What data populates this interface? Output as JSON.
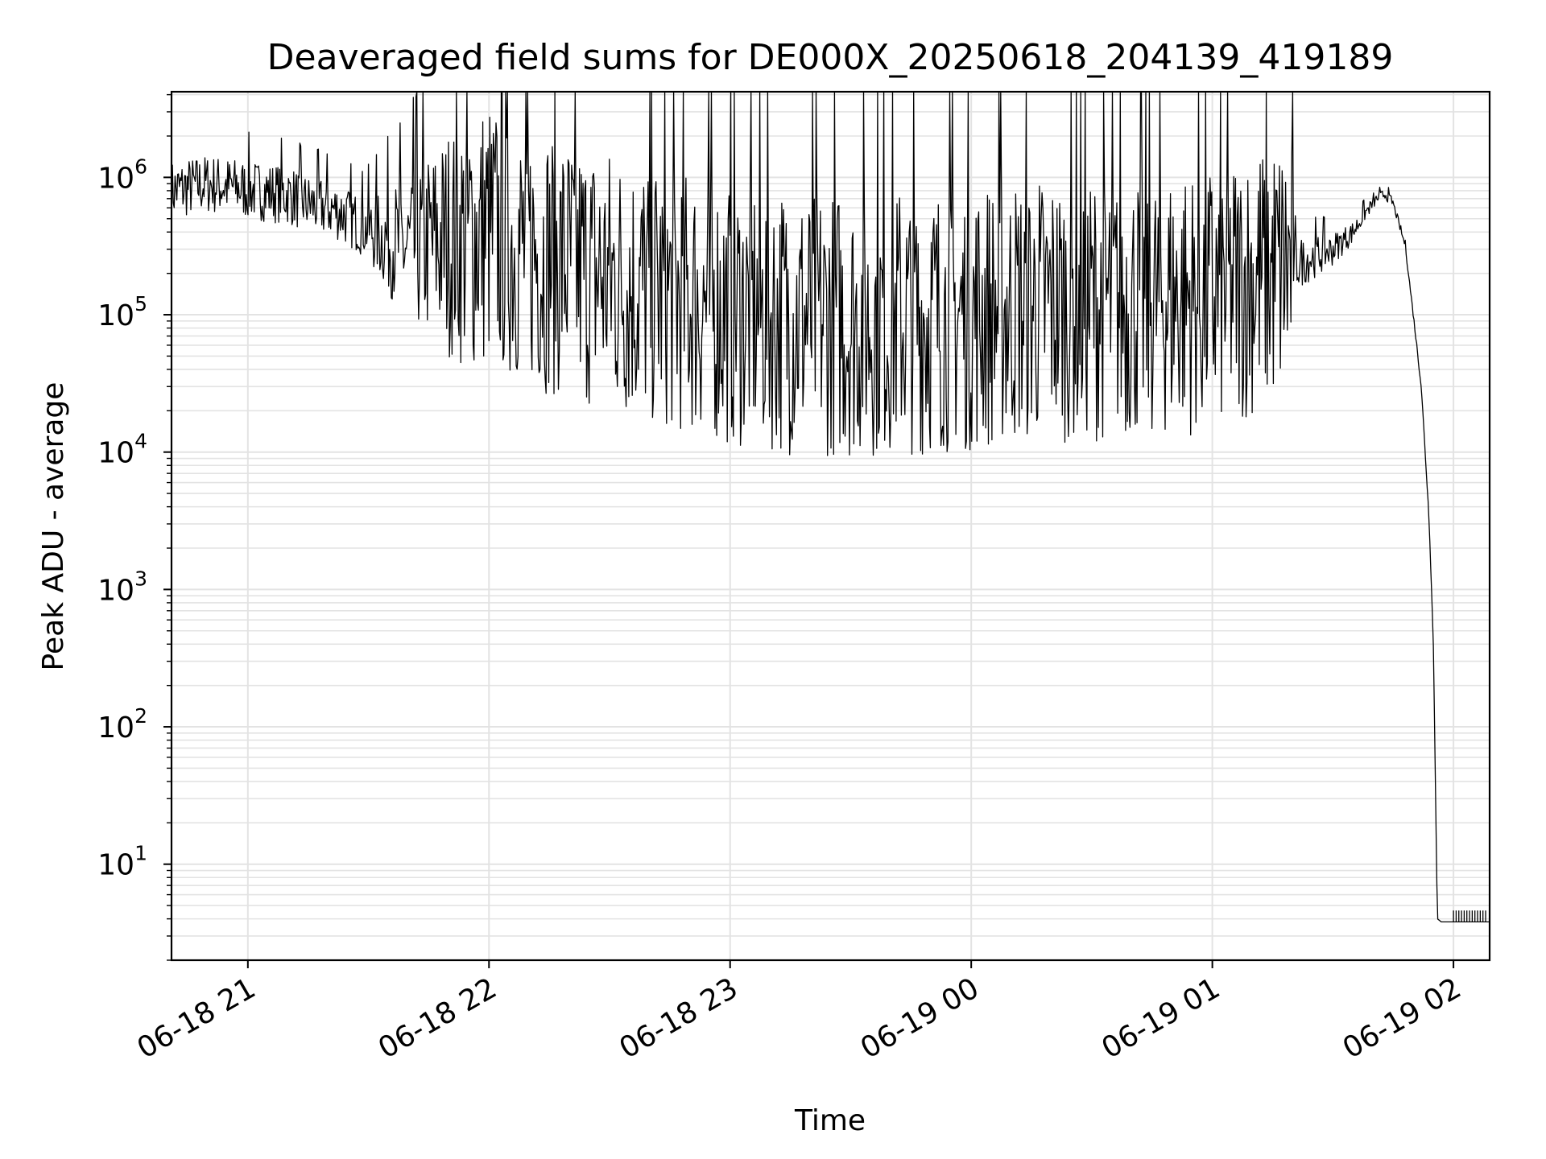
{
  "chart_data": {
    "type": "line",
    "title": "Deaveraged field sums for DE000X_20250618_204139_419189",
    "xlabel": "Time",
    "ylabel": "Peak ADU - average",
    "yscale": "log",
    "grid": true,
    "line_color": "#000000",
    "grid_color": "#e3e3e3",
    "x_ticks": [
      "06-18 21",
      "06-18 22",
      "06-18 23",
      "06-19 00",
      "06-19 01",
      "06-19 02"
    ],
    "x_tick_times": [
      "2025-06-18 21:00",
      "2025-06-18 22:00",
      "2025-06-18 23:00",
      "2025-06-19 00:00",
      "2025-06-19 01:00",
      "2025-06-19 02:00"
    ],
    "xlim": [
      "2025-06-18 20:41",
      "2025-06-19 02:09"
    ],
    "y_ticks": [
      {
        "value": 10,
        "base": "10",
        "exp": "1"
      },
      {
        "value": 100,
        "base": "10",
        "exp": "2"
      },
      {
        "value": 1000,
        "base": "10",
        "exp": "3"
      },
      {
        "value": 10000,
        "base": "10",
        "exp": "4"
      },
      {
        "value": 100000,
        "base": "10",
        "exp": "5"
      },
      {
        "value": 1000000,
        "base": "10",
        "exp": "6"
      }
    ],
    "ylim": [
      2,
      4200000
    ],
    "series": [
      {
        "x": [
          "2025-06-18 20:41",
          "2025-06-18 20:50",
          "2025-06-18 21:00",
          "2025-06-18 21:10",
          "2025-06-18 21:15",
          "2025-06-18 21:22",
          "2025-06-18 21:30",
          "2025-06-18 21:40",
          "2025-06-18 21:50",
          "2025-06-18 22:00",
          "2025-06-18 22:15",
          "2025-06-18 22:30",
          "2025-06-18 22:45",
          "2025-06-18 23:00",
          "2025-06-18 23:15",
          "2025-06-18 23:30",
          "2025-06-18 23:45",
          "2025-06-19 00:00",
          "2025-06-19 00:15",
          "2025-06-19 00:30",
          "2025-06-19 00:45",
          "2025-06-19 01:00",
          "2025-06-19 01:10",
          "2025-06-19 01:20",
          "2025-06-19 01:30",
          "2025-06-19 01:35",
          "2025-06-19 01:38",
          "2025-06-19 01:41",
          "2025-06-19 01:43",
          "2025-06-19 01:45",
          "2025-06-19 01:46",
          "2025-06-19 01:48",
          "2025-06-19 01:50",
          "2025-06-19 01:52",
          "2025-06-19 01:54",
          "2025-06-19 01:55",
          "2025-06-19 01:56",
          "2025-06-19 01:57",
          "2025-06-19 02:00",
          "2025-06-19 02:03",
          "2025-06-19 02:06",
          "2025-06-19 02:09"
        ],
        "y": [
          800000,
          900000,
          820000,
          750000,
          640000,
          580000,
          420000,
          300000,
          350000,
          400000,
          260000,
          180000,
          140000,
          110000,
          95000,
          90000,
          95000,
          100000,
          115000,
          120000,
          125000,
          135000,
          180000,
          230000,
          300000,
          400000,
          550000,
          700000,
          760000,
          650000,
          500000,
          320000,
          100000,
          30000,
          3000,
          400,
          4,
          3.8,
          3.8,
          3.8,
          3.8,
          3.8
        ]
      }
    ]
  }
}
